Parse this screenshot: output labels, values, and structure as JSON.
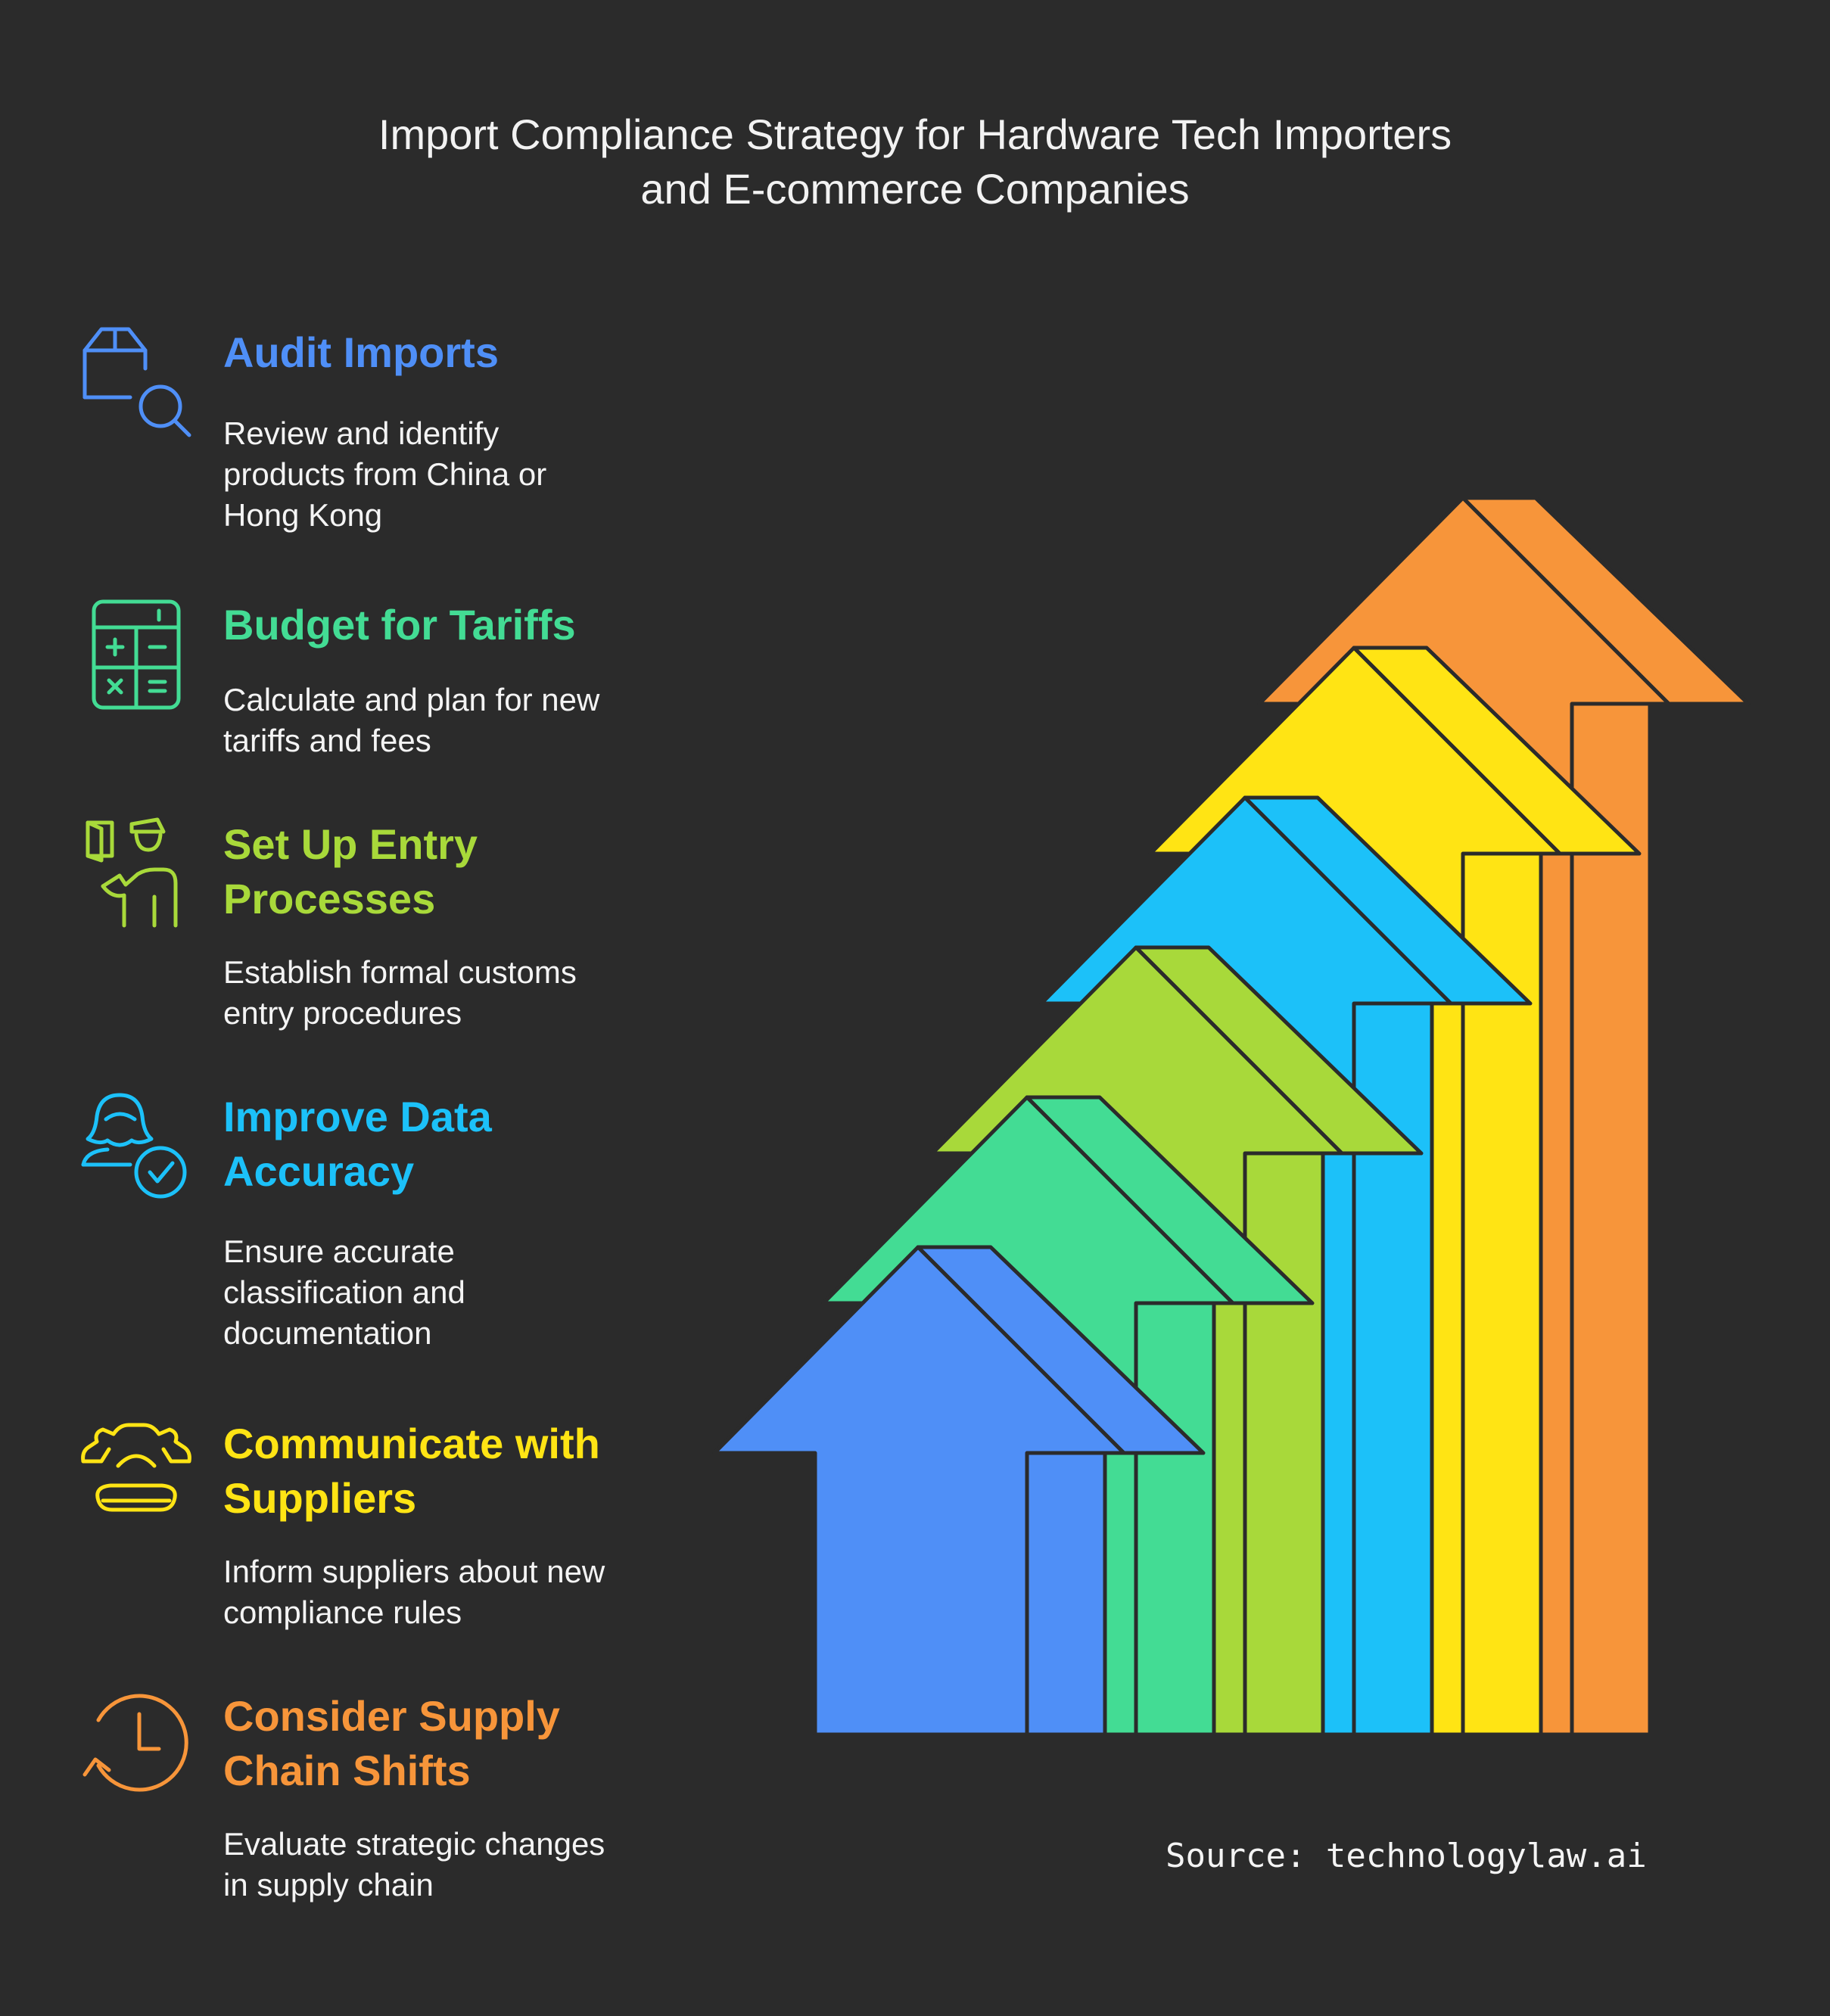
{
  "title": {
    "line1": "Import Compliance Strategy for Hardware Tech Importers",
    "line2": "and E-commerce Companies"
  },
  "steps": [
    {
      "icon": "package-search-icon",
      "color": "#4f8ff7",
      "heading": [
        "Audit Imports"
      ],
      "description": [
        "Review and identify",
        "products from China or",
        "Hong Kong"
      ]
    },
    {
      "icon": "calculator-icon",
      "color": "#43dc94",
      "heading": [
        "Budget for Tariffs"
      ],
      "description": [
        "Calculate and plan for new",
        "tariffs and fees"
      ]
    },
    {
      "icon": "customs-officer-icon",
      "color": "#a8d93a",
      "heading": [
        "Set Up Entry",
        "Processes"
      ],
      "description": [
        "Establish formal customs",
        "entry procedures"
      ]
    },
    {
      "icon": "user-check-icon",
      "color": "#1cc1f9",
      "heading": [
        "Improve Data",
        "Accuracy"
      ],
      "description": [
        "Ensure accurate",
        "classification and",
        "documentation"
      ]
    },
    {
      "icon": "telephone-icon",
      "color": "#ffe414",
      "heading": [
        "Communicate with",
        "Suppliers"
      ],
      "description": [
        "Inform suppliers about new",
        "compliance rules"
      ]
    },
    {
      "icon": "clock-rotate-icon",
      "color": "#f7953a",
      "heading": [
        "Consider Supply",
        "Chain Shifts"
      ],
      "description": [
        "Evaluate strategic changes",
        "in supply chain"
      ]
    }
  ],
  "source": "Source: technologylaw.ai"
}
